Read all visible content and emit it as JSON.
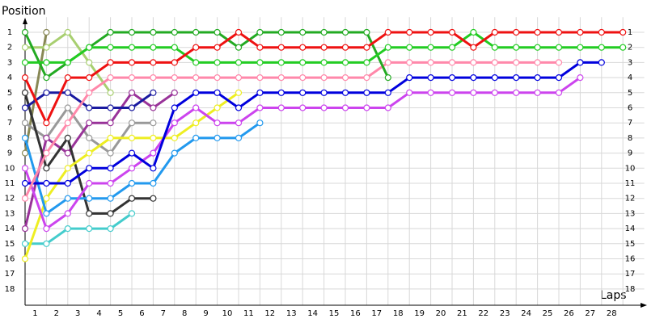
{
  "chart_data": {
    "type": "line",
    "y_label": "Position",
    "x_label": "Laps",
    "xlim": [
      0,
      29
    ],
    "ylim": [
      19,
      0
    ],
    "xticks": [
      1,
      2,
      3,
      4,
      5,
      6,
      7,
      8,
      9,
      10,
      11,
      12,
      13,
      14,
      15,
      16,
      17,
      18,
      19,
      20,
      21,
      22,
      23,
      24,
      25,
      26,
      27,
      28
    ],
    "yticks": [
      1,
      2,
      3,
      4,
      5,
      6,
      7,
      8,
      9,
      10,
      11,
      12,
      13,
      14,
      15,
      16,
      17,
      18
    ],
    "grid": true,
    "series": [
      {
        "color": "#888855",
        "values": [
          9,
          1
        ]
      },
      {
        "color": "#a8cf70",
        "values": [
          2,
          2,
          1,
          3,
          5
        ]
      },
      {
        "color": "#999999",
        "values": [
          7,
          8,
          6,
          8,
          9,
          7,
          7
        ]
      },
      {
        "color": "#993399",
        "values": [
          14,
          8,
          9,
          7,
          7,
          5,
          6,
          5
        ]
      },
      {
        "color": "#333333",
        "values": [
          5,
          10,
          8,
          13,
          13,
          12,
          12
        ]
      },
      {
        "color": "#44cccc",
        "values": [
          15,
          15,
          14,
          14,
          14,
          13
        ]
      },
      {
        "color": "#eeee22",
        "values": [
          16,
          12,
          10,
          9,
          8,
          8,
          8,
          8,
          7,
          6,
          5
        ]
      },
      {
        "color": "#2299ee",
        "values": [
          8,
          13,
          12,
          12,
          12,
          11,
          11,
          9,
          8,
          8,
          8,
          7
        ]
      },
      {
        "color": "#1a1aa0",
        "values": [
          6,
          5,
          5,
          6,
          6,
          6,
          5
        ]
      },
      {
        "color": "#cc44ee",
        "values": [
          10,
          14,
          13,
          11,
          11,
          10,
          9,
          7,
          6,
          7,
          7,
          6,
          6,
          6,
          6,
          6,
          6,
          6,
          5,
          5,
          5,
          5,
          5,
          5,
          5,
          5,
          4
        ]
      },
      {
        "color": "#0000dd",
        "values": [
          11,
          11,
          11,
          10,
          10,
          9,
          10,
          6,
          5,
          5,
          6,
          5,
          5,
          5,
          5,
          5,
          5,
          5,
          4,
          4,
          4,
          4,
          4,
          4,
          4,
          4,
          3,
          3
        ]
      },
      {
        "color": "#ff88aa",
        "values": [
          12,
          9,
          7,
          5,
          4,
          4,
          4,
          4,
          4,
          4,
          4,
          4,
          4,
          4,
          4,
          4,
          4,
          3,
          3,
          3,
          3,
          3,
          3,
          3,
          3,
          3
        ]
      },
      {
        "color": "#22aa22",
        "values": [
          1,
          4,
          3,
          2,
          1,
          1,
          1,
          1,
          1,
          1,
          2,
          1,
          1,
          1,
          1,
          1,
          1,
          4
        ]
      },
      {
        "color": "#22cc22",
        "values": [
          3,
          3,
          3,
          2,
          2,
          2,
          2,
          2,
          3,
          3,
          3,
          3,
          3,
          3,
          3,
          3,
          3,
          2,
          2,
          2,
          2,
          1,
          2,
          2,
          2,
          2,
          2,
          2,
          2
        ]
      },
      {
        "color": "#ee1111",
        "values": [
          4,
          7,
          4,
          4,
          3,
          3,
          3,
          3,
          2,
          2,
          1,
          2,
          2,
          2,
          2,
          2,
          2,
          1,
          1,
          1,
          1,
          2,
          1,
          1,
          1,
          1,
          1,
          1,
          1
        ]
      }
    ]
  }
}
